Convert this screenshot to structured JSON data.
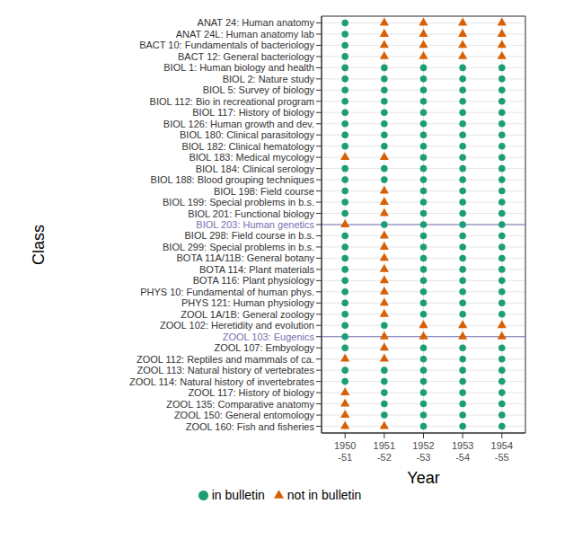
{
  "chart_data": {
    "type": "scatter",
    "xlabel": "Year",
    "ylabel": "Class",
    "x": [
      "1950-51",
      "1951-52",
      "1952-53",
      "1953-54",
      "1954-55"
    ],
    "categories": [
      "ANAT 24: Human anatomy",
      "ANAT 24L: Human anatomy lab",
      "BACT 10: Fundamentals of bacteriology",
      "BACT 12: General bacteriology",
      "BIOL 1: Human biology and health",
      "BIOL 2: Nature study",
      "BIOL 5: Survey of biology",
      "BIOL 112: Bio in recreational program",
      "BIOL 117: History of biology",
      "BIOL 126: Human growth and dev.",
      "BIOL 180: Clinical parasitology",
      "BIOL 182: Clinical hematology",
      "BIOL 183: Medical mycology",
      "BIOL 184: Clinical serology",
      "BIOL 188: Blood grouping techniques",
      "BIOL 198: Field course",
      "BIOL 199: Special problems in b.s.",
      "BIOL 201: Functional biology",
      "BIOL 203: Human genetics",
      "BIOL 298: Field course in b.s.",
      "BIOL 299: Special problems in b.s.",
      "BOTA 11A/11B: General botany",
      "BOTA 114: Plant materials",
      "BOTA 116: Plant physiology",
      "PHYS 10: Fundamental of human phys.",
      "PHYS 121: Human physiology",
      "ZOOL 1A/1B: General zoology",
      "ZOOL 102: Heretidity and evolution",
      "ZOOL 103: Eugenics",
      "ZOOL 107: Embyology",
      "ZOOL 112: Reptiles and mammals of ca.",
      "ZOOL 113: Natural history of vertebrates",
      "ZOOL 114: Natural history of invertebrates",
      "ZOOL 117: History of biology",
      "ZOOL 135: Comparative anatomy",
      "ZOOL 150: General entomology",
      "ZOOL 160: Fish and fisheries"
    ],
    "series": [
      {
        "name": "in bulletin",
        "color": "#1b9e77",
        "marker": "circle"
      },
      {
        "name": "not in bulletin",
        "color": "#d95f02",
        "marker": "triangle"
      }
    ],
    "in_bulletin": [
      [
        true,
        false,
        false,
        false,
        false
      ],
      [
        true,
        false,
        false,
        false,
        false
      ],
      [
        true,
        false,
        false,
        false,
        false
      ],
      [
        true,
        false,
        false,
        false,
        false
      ],
      [
        true,
        true,
        true,
        true,
        true
      ],
      [
        true,
        true,
        true,
        true,
        true
      ],
      [
        true,
        true,
        true,
        true,
        true
      ],
      [
        true,
        true,
        true,
        true,
        true
      ],
      [
        true,
        true,
        true,
        true,
        true
      ],
      [
        true,
        true,
        true,
        true,
        true
      ],
      [
        true,
        true,
        true,
        true,
        true
      ],
      [
        true,
        true,
        true,
        true,
        true
      ],
      [
        false,
        false,
        true,
        true,
        true
      ],
      [
        true,
        true,
        true,
        true,
        true
      ],
      [
        true,
        true,
        true,
        true,
        true
      ],
      [
        true,
        false,
        true,
        true,
        true
      ],
      [
        true,
        false,
        true,
        true,
        true
      ],
      [
        true,
        false,
        true,
        true,
        true
      ],
      [
        false,
        true,
        true,
        true,
        true
      ],
      [
        true,
        false,
        true,
        true,
        true
      ],
      [
        true,
        false,
        true,
        true,
        true
      ],
      [
        true,
        false,
        true,
        true,
        true
      ],
      [
        true,
        false,
        true,
        true,
        true
      ],
      [
        true,
        false,
        true,
        true,
        true
      ],
      [
        true,
        false,
        true,
        true,
        true
      ],
      [
        true,
        false,
        true,
        true,
        true
      ],
      [
        true,
        false,
        true,
        true,
        true
      ],
      [
        true,
        true,
        false,
        false,
        false
      ],
      [
        true,
        false,
        false,
        false,
        false
      ],
      [
        true,
        false,
        true,
        true,
        true
      ],
      [
        false,
        false,
        true,
        true,
        true
      ],
      [
        true,
        true,
        true,
        true,
        true
      ],
      [
        true,
        true,
        true,
        true,
        true
      ],
      [
        false,
        true,
        true,
        true,
        true
      ],
      [
        false,
        true,
        true,
        true,
        true
      ],
      [
        false,
        true,
        true,
        true,
        true
      ],
      [
        false,
        false,
        true,
        true,
        true
      ]
    ],
    "highlight": {
      "categories": [
        "BIOL 203: Human genetics",
        "ZOOL 103: Eugenics"
      ],
      "color": "#7570b3"
    },
    "grid": true,
    "legend": "bottom"
  }
}
